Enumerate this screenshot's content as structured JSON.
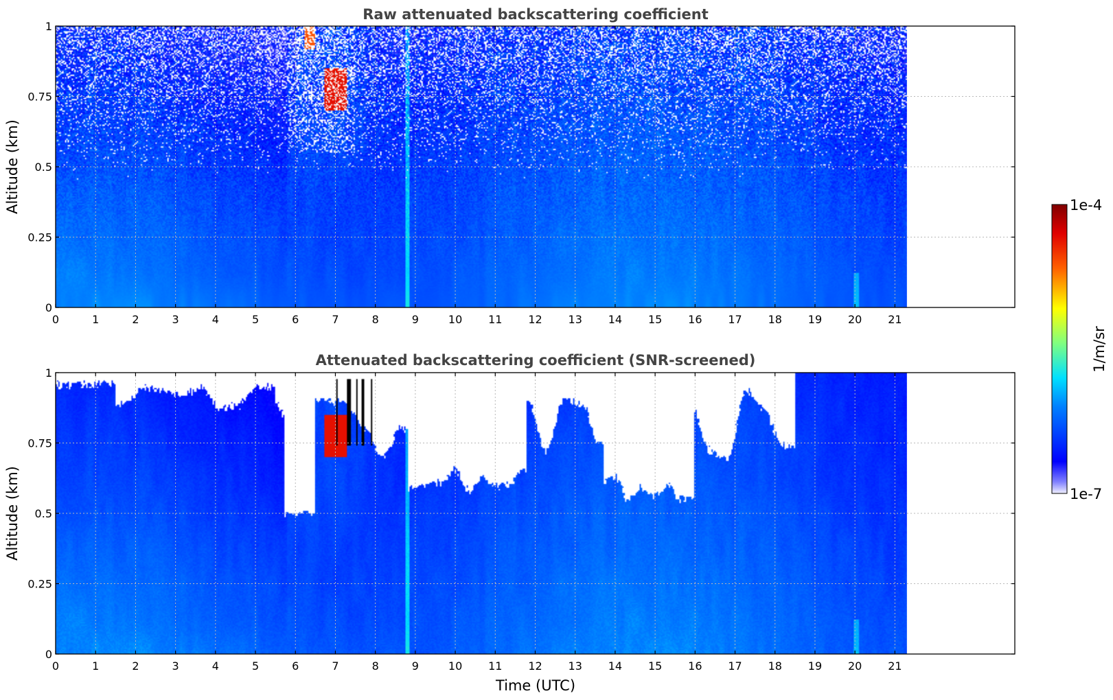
{
  "chart_data": [
    {
      "type": "heatmap",
      "title": "Raw attenuated backscattering coefficient",
      "xlabel": "",
      "ylabel": "Altitude (km)",
      "xlim": [
        0,
        24
      ],
      "ylim": [
        0,
        1
      ],
      "data_x_range": [
        0,
        21.3
      ],
      "x_ticks": [
        0,
        1,
        2,
        3,
        4,
        5,
        6,
        7,
        8,
        9,
        10,
        11,
        12,
        13,
        14,
        15,
        16,
        17,
        18,
        19,
        20,
        21
      ],
      "y_ticks": [
        0,
        0.25,
        0.5,
        0.75,
        1
      ],
      "y_tick_labels": [
        "0",
        "0.25",
        "0.5",
        "0.75",
        "1"
      ],
      "grid": true,
      "screened": false
    },
    {
      "type": "heatmap",
      "title": "Attenuated backscattering coefficient (SNR-screened)",
      "xlabel": "Time (UTC)",
      "ylabel": "Altitude (km)",
      "xlim": [
        0,
        24
      ],
      "ylim": [
        0,
        1
      ],
      "data_x_range": [
        0,
        21.3
      ],
      "x_ticks": [
        0,
        1,
        2,
        3,
        4,
        5,
        6,
        7,
        8,
        9,
        10,
        11,
        12,
        13,
        14,
        15,
        16,
        17,
        18,
        19,
        20,
        21
      ],
      "y_ticks": [
        0,
        0.25,
        0.5,
        0.75,
        1
      ],
      "y_tick_labels": [
        "0",
        "0.25",
        "0.5",
        "0.75",
        "1"
      ],
      "grid": true,
      "screened": true
    }
  ],
  "colorbar": {
    "max_label": "1e-4",
    "min_label": "1e-7",
    "unit_label": "1/m/sr",
    "scale": "log",
    "colormap": "jet"
  }
}
